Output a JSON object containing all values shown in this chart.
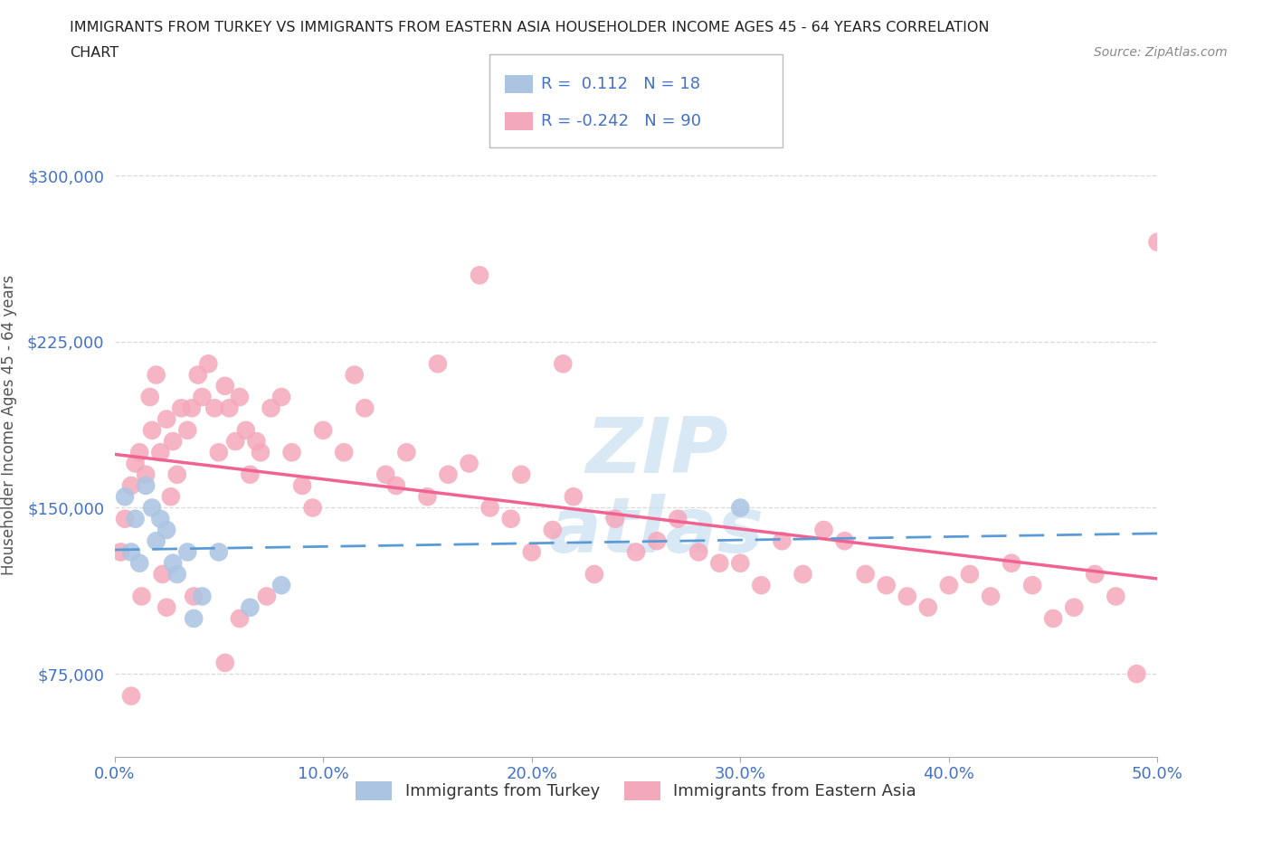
{
  "title_line1": "IMMIGRANTS FROM TURKEY VS IMMIGRANTS FROM EASTERN ASIA HOUSEHOLDER INCOME AGES 45 - 64 YEARS CORRELATION",
  "title_line2": "CHART",
  "source": "Source: ZipAtlas.com",
  "ylabel": "Householder Income Ages 45 - 64 years",
  "xlim": [
    0.0,
    0.5
  ],
  "ylim": [
    37500,
    337500
  ],
  "yticks": [
    75000,
    150000,
    225000,
    300000
  ],
  "ytick_labels": [
    "$75,000",
    "$150,000",
    "$225,000",
    "$300,000"
  ],
  "xticks": [
    0.0,
    0.1,
    0.2,
    0.3,
    0.4,
    0.5
  ],
  "xtick_labels": [
    "0.0%",
    "10.0%",
    "20.0%",
    "30.0%",
    "40.0%",
    "50.0%"
  ],
  "turkey_color": "#aac4e2",
  "eastern_asia_color": "#f4a8bb",
  "turkey_R": 0.112,
  "turkey_N": 18,
  "eastern_asia_R": -0.242,
  "eastern_asia_N": 90,
  "turkey_scatter_x": [
    0.005,
    0.008,
    0.01,
    0.012,
    0.015,
    0.018,
    0.02,
    0.022,
    0.025,
    0.028,
    0.03,
    0.035,
    0.038,
    0.042,
    0.05,
    0.065,
    0.08,
    0.3
  ],
  "turkey_scatter_y": [
    155000,
    130000,
    145000,
    125000,
    160000,
    150000,
    135000,
    145000,
    140000,
    125000,
    120000,
    130000,
    100000,
    110000,
    130000,
    105000,
    115000,
    150000
  ],
  "eastern_asia_scatter_x": [
    0.003,
    0.005,
    0.008,
    0.01,
    0.012,
    0.015,
    0.017,
    0.018,
    0.02,
    0.022,
    0.025,
    0.027,
    0.028,
    0.03,
    0.032,
    0.035,
    0.037,
    0.04,
    0.042,
    0.045,
    0.048,
    0.05,
    0.053,
    0.055,
    0.058,
    0.06,
    0.063,
    0.065,
    0.068,
    0.07,
    0.075,
    0.08,
    0.085,
    0.09,
    0.1,
    0.11,
    0.12,
    0.13,
    0.14,
    0.15,
    0.16,
    0.17,
    0.18,
    0.19,
    0.195,
    0.2,
    0.21,
    0.22,
    0.23,
    0.24,
    0.25,
    0.26,
    0.27,
    0.28,
    0.29,
    0.3,
    0.31,
    0.32,
    0.33,
    0.34,
    0.35,
    0.36,
    0.37,
    0.38,
    0.39,
    0.4,
    0.41,
    0.42,
    0.43,
    0.44,
    0.45,
    0.46,
    0.47,
    0.48,
    0.49,
    0.5,
    0.215,
    0.175,
    0.155,
    0.135,
    0.115,
    0.095,
    0.073,
    0.053,
    0.038,
    0.023,
    0.013,
    0.008,
    0.025,
    0.06
  ],
  "eastern_asia_scatter_y": [
    130000,
    145000,
    160000,
    170000,
    175000,
    165000,
    200000,
    185000,
    210000,
    175000,
    190000,
    155000,
    180000,
    165000,
    195000,
    185000,
    195000,
    210000,
    200000,
    215000,
    195000,
    175000,
    205000,
    195000,
    180000,
    200000,
    185000,
    165000,
    180000,
    175000,
    195000,
    200000,
    175000,
    160000,
    185000,
    175000,
    195000,
    165000,
    175000,
    155000,
    165000,
    170000,
    150000,
    145000,
    165000,
    130000,
    140000,
    155000,
    120000,
    145000,
    130000,
    135000,
    145000,
    130000,
    125000,
    125000,
    115000,
    135000,
    120000,
    140000,
    135000,
    120000,
    115000,
    110000,
    105000,
    115000,
    120000,
    110000,
    125000,
    115000,
    100000,
    105000,
    120000,
    110000,
    75000,
    270000,
    215000,
    255000,
    215000,
    160000,
    210000,
    150000,
    110000,
    80000,
    110000,
    120000,
    110000,
    65000,
    105000,
    100000
  ],
  "background_color": "#ffffff",
  "grid_color": "#d0d0d0",
  "title_color": "#222222",
  "axis_label_color": "#555555",
  "tick_color": "#4472c4",
  "turkey_line_color": "#5b9bd5",
  "eastern_asia_line_color": "#f06292",
  "legend_R_color": "#4472c4",
  "watermark_color": "#c8dff0"
}
